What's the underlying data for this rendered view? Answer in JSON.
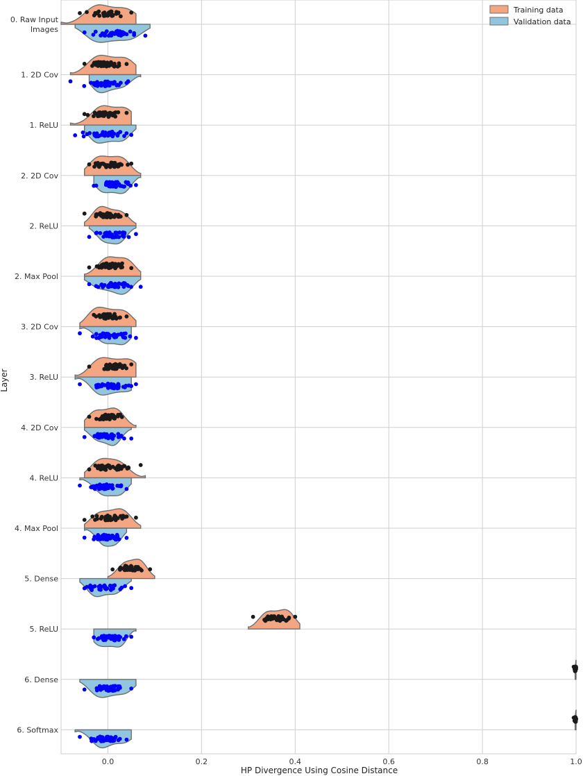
{
  "chart_data": {
    "type": "split-violin-with-strip",
    "title": "",
    "xlabel": "HP Divergence Using Cosine Distance",
    "ylabel": "Layer",
    "xlim": [
      -0.1,
      1.0
    ],
    "x_ticks": [
      0.0,
      0.2,
      0.4,
      0.6,
      0.8,
      1.0
    ],
    "x_tick_labels": [
      "0.0",
      "0.2",
      "0.4",
      "0.6",
      "0.8",
      "1.0"
    ],
    "grid": true,
    "legend": {
      "placement": "top-right",
      "entries": [
        {
          "label": "Training data",
          "color": "#f4a582"
        },
        {
          "label": "Validation data",
          "color": "#92c5de"
        }
      ]
    },
    "point_colors": {
      "Training data": "#1a1a1a",
      "Validation data": "#0000ff"
    },
    "categories": [
      {
        "label": [
          "0. Raw Input",
          "Images"
        ],
        "train": {
          "center": 0.0,
          "low": -0.06,
          "high": 0.05,
          "violin": [
            -0.1,
            0.06
          ]
        },
        "val": {
          "center": 0.01,
          "low": -0.05,
          "high": 0.08,
          "violin": [
            -0.07,
            0.09
          ]
        }
      },
      {
        "label": [
          "1. 2D Cov"
        ],
        "train": {
          "center": 0.0,
          "low": -0.05,
          "high": 0.04,
          "violin": [
            -0.08,
            0.06
          ]
        },
        "val": {
          "center": 0.0,
          "low": -0.08,
          "high": 0.04,
          "violin": [
            -0.04,
            0.07
          ]
        }
      },
      {
        "label": [
          "1. ReLU"
        ],
        "train": {
          "center": 0.0,
          "low": -0.05,
          "high": 0.04,
          "violin": [
            -0.08,
            0.05
          ]
        },
        "val": {
          "center": 0.0,
          "low": -0.07,
          "high": 0.05,
          "violin": [
            -0.05,
            0.06
          ]
        }
      },
      {
        "label": [
          "2. 2D Cov"
        ],
        "train": {
          "center": 0.0,
          "low": -0.04,
          "high": 0.05,
          "violin": [
            -0.05,
            0.07
          ]
        },
        "val": {
          "center": 0.01,
          "low": -0.03,
          "high": 0.06,
          "violin": [
            -0.03,
            0.07
          ]
        }
      },
      {
        "label": [
          "2. ReLU"
        ],
        "train": {
          "center": 0.0,
          "low": -0.05,
          "high": 0.04,
          "violin": [
            -0.05,
            0.06
          ]
        },
        "val": {
          "center": 0.01,
          "low": -0.04,
          "high": 0.06,
          "violin": [
            -0.04,
            0.06
          ]
        }
      },
      {
        "label": [
          "2. Max Pool"
        ],
        "train": {
          "center": 0.01,
          "low": -0.04,
          "high": 0.05,
          "violin": [
            -0.05,
            0.07
          ]
        },
        "val": {
          "center": 0.01,
          "low": -0.04,
          "high": 0.07,
          "violin": [
            -0.05,
            0.07
          ]
        }
      },
      {
        "label": [
          "3. 2D Cov"
        ],
        "train": {
          "center": 0.0,
          "low": -0.03,
          "high": 0.04,
          "violin": [
            -0.06,
            0.06
          ]
        },
        "val": {
          "center": 0.01,
          "low": -0.06,
          "high": 0.06,
          "violin": [
            -0.06,
            0.05
          ]
        }
      },
      {
        "label": [
          "3. ReLU"
        ],
        "train": {
          "center": 0.01,
          "low": -0.04,
          "high": 0.05,
          "violin": [
            -0.07,
            0.06
          ]
        },
        "val": {
          "center": 0.01,
          "low": -0.06,
          "high": 0.06,
          "violin": [
            -0.07,
            0.05
          ]
        }
      },
      {
        "label": [
          "4. 2D Cov"
        ],
        "train": {
          "center": 0.0,
          "low": -0.04,
          "high": 0.03,
          "violin": [
            -0.05,
            0.06
          ]
        },
        "val": {
          "center": 0.0,
          "low": -0.05,
          "high": 0.05,
          "violin": [
            -0.05,
            0.05
          ]
        }
      },
      {
        "label": [
          "4. ReLU"
        ],
        "train": {
          "center": 0.0,
          "low": -0.04,
          "high": 0.07,
          "violin": [
            -0.05,
            0.08
          ]
        },
        "val": {
          "center": 0.0,
          "low": -0.06,
          "high": 0.04,
          "violin": [
            -0.06,
            0.05
          ]
        }
      },
      {
        "label": [
          "4. Max Pool"
        ],
        "train": {
          "center": 0.01,
          "low": -0.05,
          "high": 0.06,
          "violin": [
            -0.05,
            0.07
          ]
        },
        "val": {
          "center": 0.0,
          "low": -0.05,
          "high": 0.04,
          "violin": [
            -0.05,
            0.04
          ]
        }
      },
      {
        "label": [
          "5. Dense"
        ],
        "train": {
          "center": 0.05,
          "low": 0.01,
          "high": 0.09,
          "violin": [
            0.0,
            0.1
          ]
        },
        "val": {
          "center": -0.01,
          "low": -0.05,
          "high": 0.05,
          "violin": [
            -0.06,
            0.05
          ]
        }
      },
      {
        "label": [
          "5. ReLU"
        ],
        "train": {
          "center": 0.36,
          "low": 0.31,
          "high": 0.4,
          "violin": [
            0.3,
            0.41
          ]
        },
        "val": {
          "center": 0.0,
          "low": -0.03,
          "high": 0.05,
          "violin": [
            -0.03,
            0.06
          ]
        }
      },
      {
        "label": [
          "6. Dense"
        ],
        "train": {
          "center": 1.0,
          "low": 0.995,
          "high": 1.0,
          "violin": [
            0.998,
            1.0
          ]
        },
        "val": {
          "center": 0.0,
          "low": -0.05,
          "high": 0.05,
          "violin": [
            -0.06,
            0.06
          ]
        }
      },
      {
        "label": [
          "6. Softmax"
        ],
        "train": {
          "center": 1.0,
          "low": 0.995,
          "high": 1.0,
          "violin": [
            0.998,
            1.0
          ]
        },
        "val": {
          "center": 0.0,
          "low": -0.06,
          "high": 0.04,
          "violin": [
            -0.07,
            0.05
          ]
        }
      }
    ]
  }
}
